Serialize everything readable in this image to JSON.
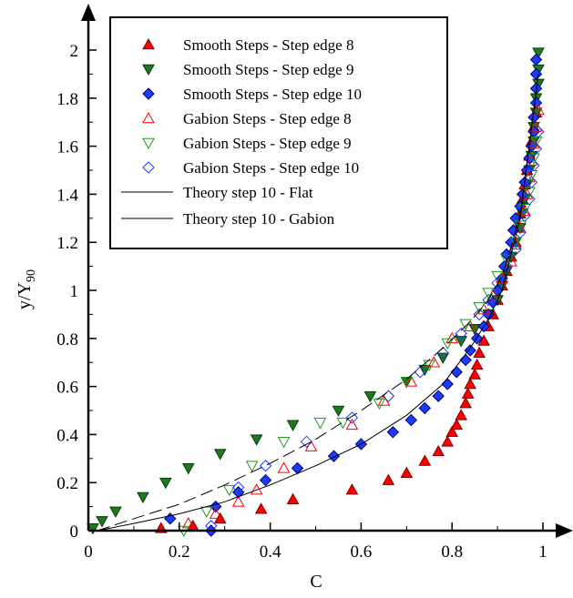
{
  "chart_data": {
    "type": "scatter",
    "xlabel": "C",
    "ylabel": "y/Y",
    "ylabel_sub": "90",
    "xlim": [
      0,
      1.05
    ],
    "ylim": [
      0,
      2.1
    ],
    "xticks": [
      0,
      0.2,
      0.4,
      0.6,
      0.8,
      1
    ],
    "yticks": [
      0,
      0.2,
      0.4,
      0.6,
      0.8,
      1,
      1.2,
      1.4,
      1.6,
      1.8,
      2
    ],
    "grid": false,
    "legend_position": "top-left",
    "series": [
      {
        "name": "Smooth Steps - Step edge 8",
        "marker": "triangle-up",
        "fill": "#ff0000",
        "stroke": "#7a0000",
        "filled": true,
        "points": [
          [
            0.16,
            0.01
          ],
          [
            0.23,
            0.02
          ],
          [
            0.29,
            0.05
          ],
          [
            0.38,
            0.09
          ],
          [
            0.45,
            0.13
          ],
          [
            0.58,
            0.17
          ],
          [
            0.66,
            0.21
          ],
          [
            0.7,
            0.24
          ],
          [
            0.74,
            0.29
          ],
          [
            0.77,
            0.33
          ],
          [
            0.79,
            0.37
          ],
          [
            0.8,
            0.41
          ],
          [
            0.81,
            0.44
          ],
          [
            0.82,
            0.48
          ],
          [
            0.83,
            0.53
          ],
          [
            0.835,
            0.57
          ],
          [
            0.84,
            0.61
          ],
          [
            0.85,
            0.65
          ],
          [
            0.855,
            0.69
          ],
          [
            0.86,
            0.74
          ],
          [
            0.87,
            0.79
          ],
          [
            0.88,
            0.85
          ],
          [
            0.89,
            0.9
          ],
          [
            0.9,
            0.96
          ],
          [
            0.91,
            1.02
          ],
          [
            0.92,
            1.08
          ],
          [
            0.93,
            1.14
          ],
          [
            0.94,
            1.2
          ],
          [
            0.945,
            1.26
          ],
          [
            0.95,
            1.32
          ],
          [
            0.955,
            1.38
          ],
          [
            0.96,
            1.44
          ],
          [
            0.965,
            1.5
          ],
          [
            0.97,
            1.56
          ],
          [
            0.975,
            1.62
          ],
          [
            0.98,
            1.68
          ],
          [
            0.985,
            1.74
          ]
        ]
      },
      {
        "name": "Smooth Steps - Step edge 9",
        "marker": "triangle-down",
        "fill": "#1e7a1e",
        "stroke": "#0a3a0a",
        "filled": true,
        "points": [
          [
            0.01,
            0.01
          ],
          [
            0.03,
            0.04
          ],
          [
            0.06,
            0.08
          ],
          [
            0.12,
            0.14
          ],
          [
            0.17,
            0.2
          ],
          [
            0.22,
            0.26
          ],
          [
            0.29,
            0.32
          ],
          [
            0.37,
            0.38
          ],
          [
            0.45,
            0.44
          ],
          [
            0.55,
            0.5
          ],
          [
            0.62,
            0.56
          ],
          [
            0.7,
            0.62
          ],
          [
            0.74,
            0.67
          ],
          [
            0.78,
            0.72
          ],
          [
            0.82,
            0.79
          ],
          [
            0.85,
            0.84
          ],
          [
            0.88,
            0.9
          ],
          [
            0.9,
            0.96
          ],
          [
            0.91,
            1.02
          ],
          [
            0.92,
            1.08
          ],
          [
            0.93,
            1.14
          ],
          [
            0.94,
            1.2
          ],
          [
            0.95,
            1.26
          ],
          [
            0.955,
            1.32
          ],
          [
            0.96,
            1.38
          ],
          [
            0.965,
            1.44
          ],
          [
            0.97,
            1.5
          ],
          [
            0.975,
            1.56
          ],
          [
            0.98,
            1.62
          ],
          [
            0.98,
            1.68
          ],
          [
            0.985,
            1.74
          ],
          [
            0.985,
            1.8
          ],
          [
            0.99,
            1.86
          ],
          [
            0.99,
            1.92
          ],
          [
            0.99,
            1.99
          ]
        ]
      },
      {
        "name": "Smooth Steps - Step edge 10",
        "marker": "diamond",
        "fill": "#1a3cff",
        "stroke": "#000070",
        "filled": true,
        "points": [
          [
            0.27,
            0.0
          ],
          [
            0.18,
            0.05
          ],
          [
            0.28,
            0.1
          ],
          [
            0.33,
            0.16
          ],
          [
            0.39,
            0.21
          ],
          [
            0.46,
            0.26
          ],
          [
            0.54,
            0.31
          ],
          [
            0.6,
            0.36
          ],
          [
            0.67,
            0.41
          ],
          [
            0.71,
            0.46
          ],
          [
            0.74,
            0.51
          ],
          [
            0.77,
            0.56
          ],
          [
            0.79,
            0.61
          ],
          [
            0.81,
            0.66
          ],
          [
            0.83,
            0.71
          ],
          [
            0.84,
            0.75
          ],
          [
            0.855,
            0.8
          ],
          [
            0.87,
            0.85
          ],
          [
            0.88,
            0.9
          ],
          [
            0.89,
            0.95
          ],
          [
            0.9,
            1.0
          ],
          [
            0.91,
            1.05
          ],
          [
            0.915,
            1.1
          ],
          [
            0.92,
            1.15
          ],
          [
            0.93,
            1.2
          ],
          [
            0.935,
            1.25
          ],
          [
            0.94,
            1.3
          ],
          [
            0.95,
            1.35
          ],
          [
            0.955,
            1.4
          ],
          [
            0.96,
            1.45
          ],
          [
            0.965,
            1.5
          ],
          [
            0.97,
            1.55
          ],
          [
            0.975,
            1.6
          ],
          [
            0.98,
            1.66
          ],
          [
            0.98,
            1.72
          ],
          [
            0.985,
            1.78
          ],
          [
            0.985,
            1.84
          ],
          [
            0.985,
            1.9
          ],
          [
            0.985,
            1.96
          ]
        ]
      },
      {
        "name": "Gabion Steps - Step edge 8",
        "marker": "triangle-up",
        "fill": "none",
        "stroke": "#ff0000",
        "filled": false,
        "points": [
          [
            0.22,
            0.03
          ],
          [
            0.28,
            0.07
          ],
          [
            0.33,
            0.12
          ],
          [
            0.37,
            0.17
          ],
          [
            0.43,
            0.26
          ],
          [
            0.49,
            0.35
          ],
          [
            0.58,
            0.44
          ],
          [
            0.65,
            0.54
          ],
          [
            0.71,
            0.62
          ],
          [
            0.76,
            0.7
          ],
          [
            0.8,
            0.8
          ],
          [
            0.84,
            0.85
          ],
          [
            0.87,
            0.92
          ],
          [
            0.89,
            0.98
          ],
          [
            0.91,
            1.05
          ],
          [
            0.93,
            1.12
          ],
          [
            0.94,
            1.19
          ],
          [
            0.95,
            1.26
          ],
          [
            0.96,
            1.33
          ],
          [
            0.965,
            1.4
          ],
          [
            0.97,
            1.47
          ],
          [
            0.975,
            1.54
          ],
          [
            0.98,
            1.61
          ],
          [
            0.985,
            1.68
          ],
          [
            0.99,
            1.75
          ]
        ]
      },
      {
        "name": "Gabion Steps - Step edge 9",
        "marker": "triangle-down",
        "fill": "none",
        "stroke": "#1e9a1e",
        "filled": false,
        "points": [
          [
            0.21,
            0.0
          ],
          [
            0.26,
            0.08
          ],
          [
            0.31,
            0.17
          ],
          [
            0.36,
            0.27
          ],
          [
            0.43,
            0.37
          ],
          [
            0.51,
            0.45
          ],
          [
            0.56,
            0.45
          ],
          [
            0.64,
            0.53
          ],
          [
            0.7,
            0.62
          ],
          [
            0.75,
            0.69
          ],
          [
            0.79,
            0.78
          ],
          [
            0.83,
            0.86
          ],
          [
            0.86,
            0.93
          ],
          [
            0.88,
            0.99
          ],
          [
            0.9,
            1.06
          ],
          [
            0.92,
            1.13
          ],
          [
            0.94,
            1.2
          ],
          [
            0.95,
            1.27
          ],
          [
            0.96,
            1.34
          ],
          [
            0.97,
            1.41
          ],
          [
            0.975,
            1.48
          ],
          [
            0.98,
            1.55
          ],
          [
            0.985,
            1.62
          ]
        ]
      },
      {
        "name": "Gabion Steps - Step edge 10",
        "marker": "diamond",
        "fill": "none",
        "stroke": "#1a3cff",
        "filled": false,
        "points": [
          [
            0.27,
            0.02
          ],
          [
            0.33,
            0.18
          ],
          [
            0.39,
            0.27
          ],
          [
            0.48,
            0.37
          ],
          [
            0.58,
            0.47
          ],
          [
            0.66,
            0.56
          ],
          [
            0.73,
            0.66
          ],
          [
            0.78,
            0.74
          ],
          [
            0.82,
            0.82
          ],
          [
            0.86,
            0.9
          ],
          [
            0.88,
            0.96
          ],
          [
            0.9,
            1.03
          ],
          [
            0.92,
            1.1
          ],
          [
            0.94,
            1.17
          ],
          [
            0.95,
            1.24
          ],
          [
            0.96,
            1.31
          ],
          [
            0.97,
            1.38
          ],
          [
            0.975,
            1.45
          ],
          [
            0.98,
            1.52
          ],
          [
            0.985,
            1.59
          ],
          [
            0.99,
            1.66
          ]
        ]
      },
      {
        "name": "Theory step 10 - Flat",
        "marker": "line",
        "stroke": "#000000",
        "dash": "solid",
        "points": [
          [
            0.02,
            0.0
          ],
          [
            0.1,
            0.03
          ],
          [
            0.2,
            0.07
          ],
          [
            0.3,
            0.12
          ],
          [
            0.4,
            0.19
          ],
          [
            0.5,
            0.27
          ],
          [
            0.6,
            0.36
          ],
          [
            0.7,
            0.48
          ],
          [
            0.78,
            0.61
          ],
          [
            0.84,
            0.76
          ],
          [
            0.88,
            0.88
          ],
          [
            0.91,
            1.0
          ],
          [
            0.93,
            1.15
          ],
          [
            0.95,
            1.3
          ],
          [
            0.96,
            1.45
          ],
          [
            0.97,
            1.6
          ],
          [
            0.98,
            1.75
          ],
          [
            0.99,
            1.9
          ]
        ]
      },
      {
        "name": "Theory step 10 - Gabion",
        "marker": "line",
        "stroke": "#000000",
        "dash": "dashed",
        "points": [
          [
            0.02,
            0.0
          ],
          [
            0.1,
            0.05
          ],
          [
            0.2,
            0.11
          ],
          [
            0.3,
            0.19
          ],
          [
            0.4,
            0.28
          ],
          [
            0.5,
            0.38
          ],
          [
            0.6,
            0.5
          ],
          [
            0.7,
            0.63
          ],
          [
            0.78,
            0.76
          ],
          [
            0.84,
            0.87
          ],
          [
            0.88,
            0.96
          ],
          [
            0.91,
            1.06
          ],
          [
            0.93,
            1.18
          ],
          [
            0.95,
            1.32
          ],
          [
            0.96,
            1.46
          ],
          [
            0.97,
            1.6
          ],
          [
            0.98,
            1.75
          ],
          [
            0.99,
            1.9
          ]
        ]
      }
    ]
  }
}
